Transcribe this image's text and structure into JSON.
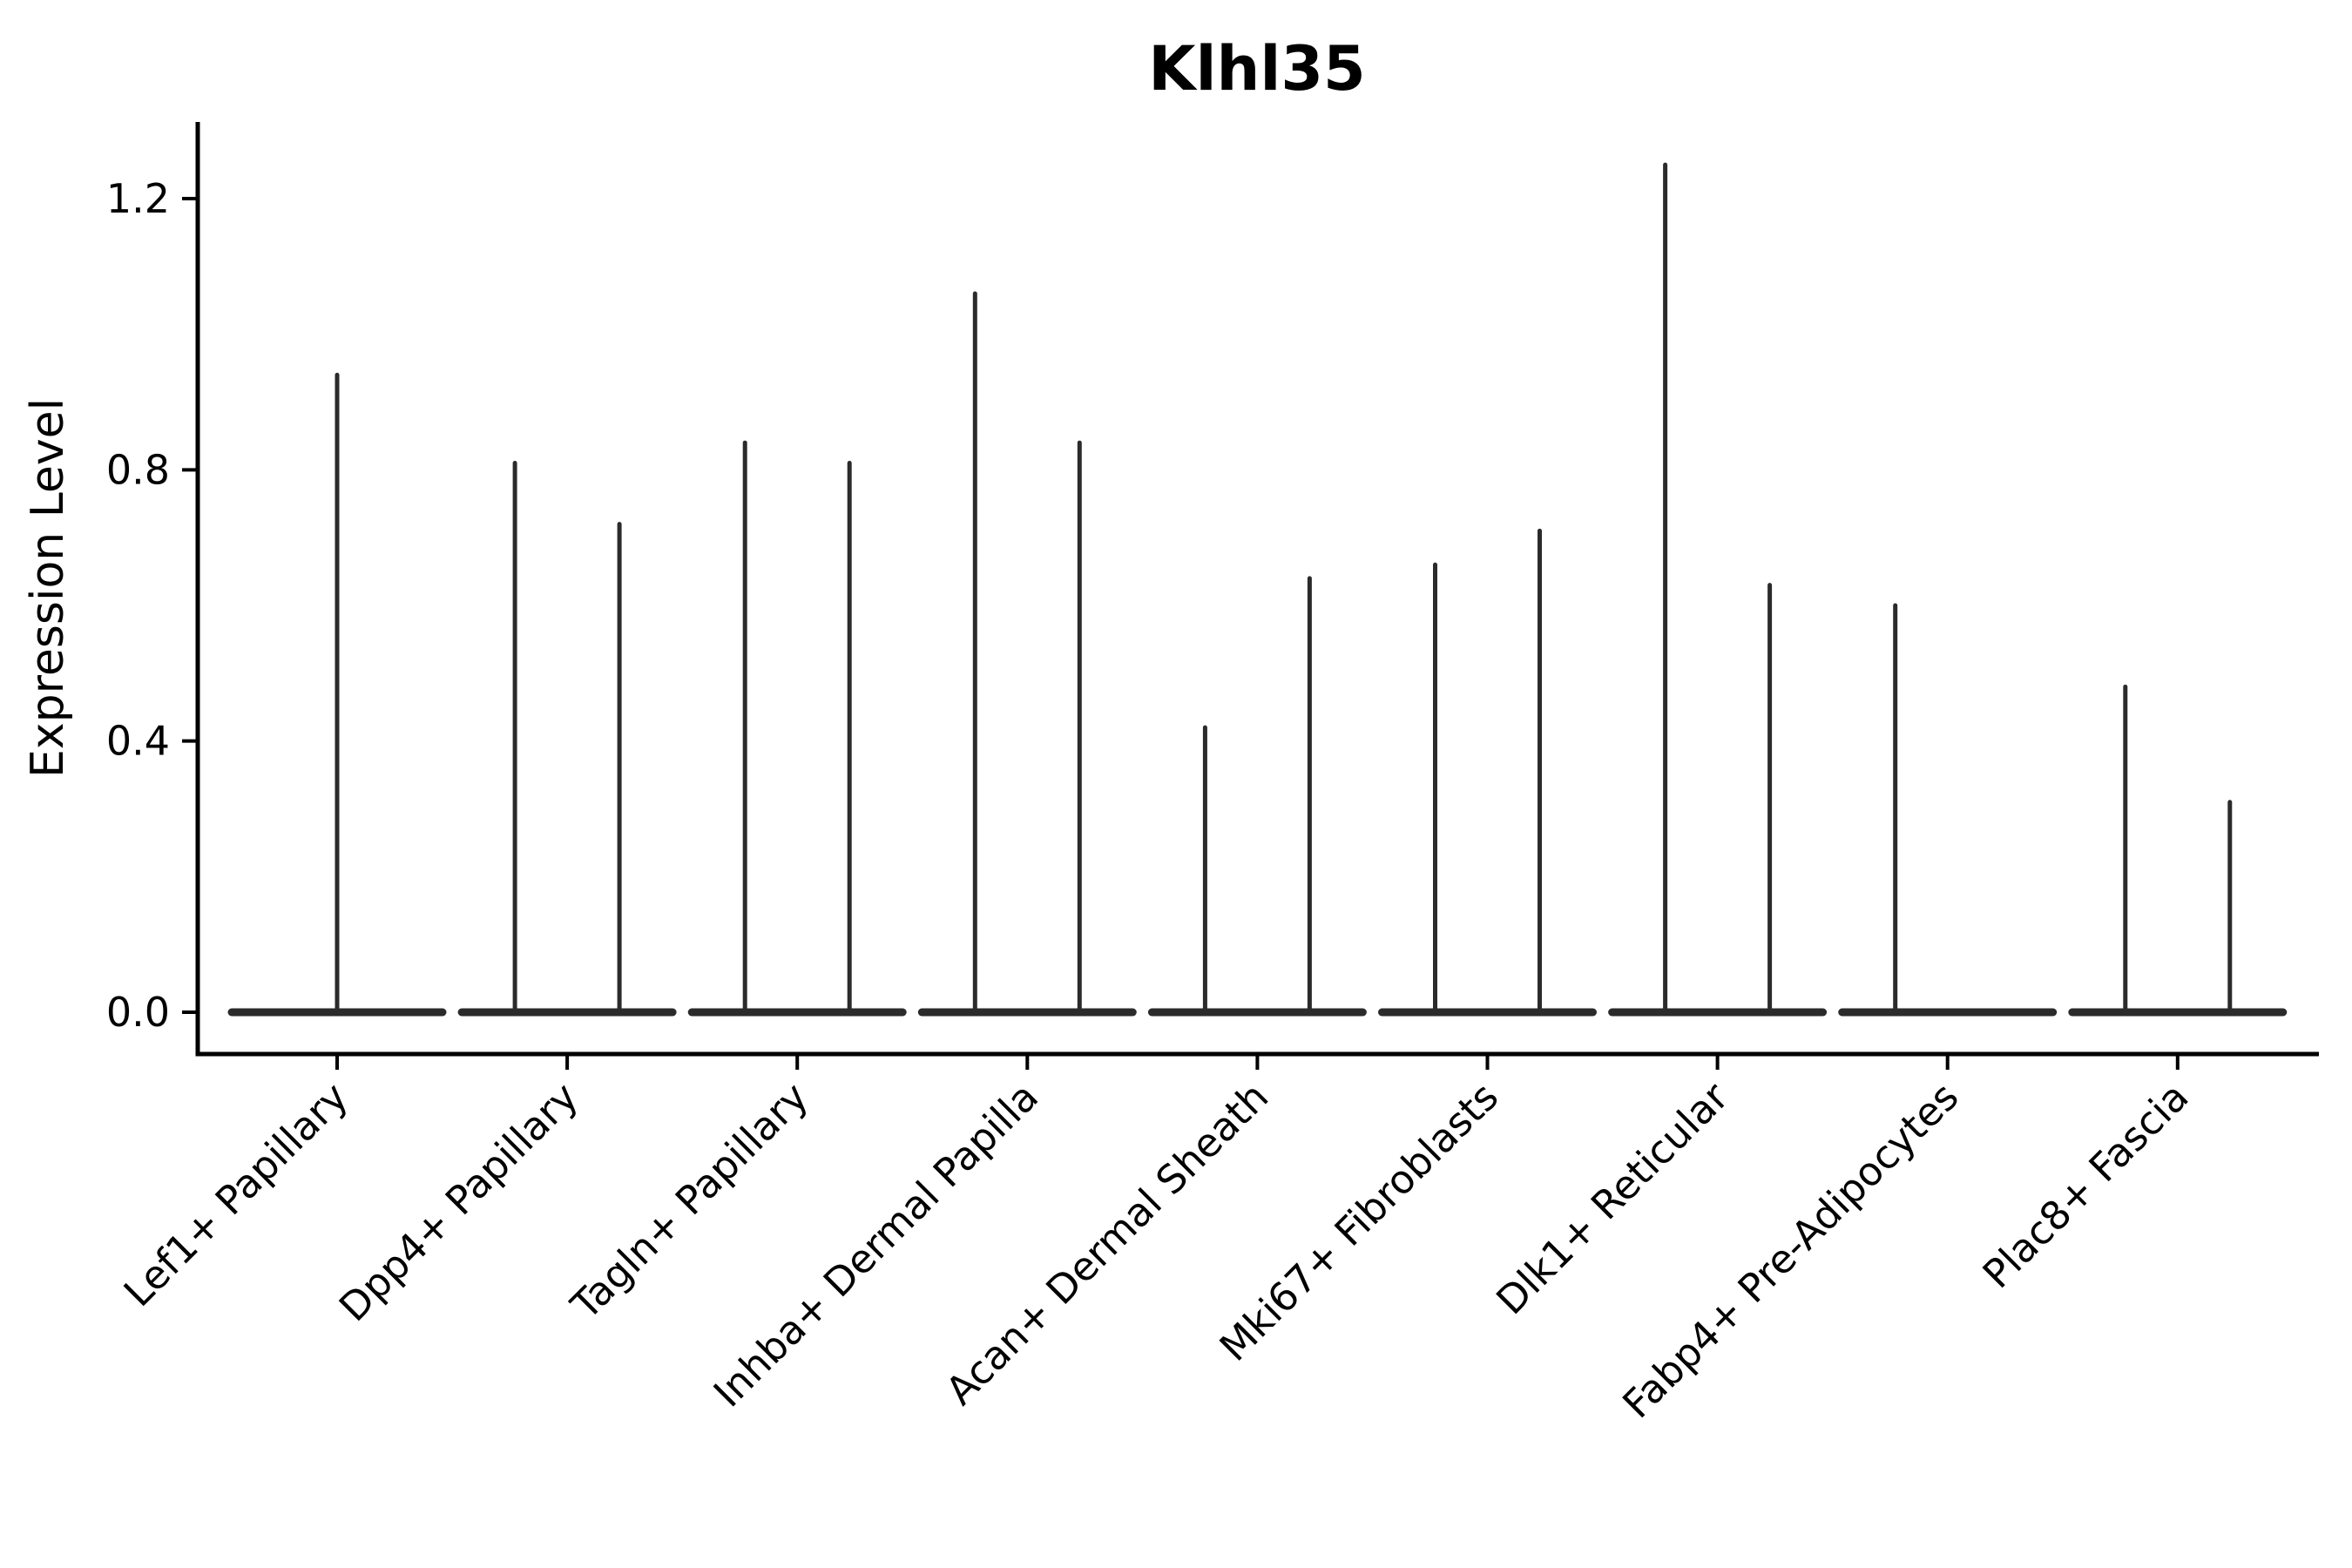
{
  "figure": {
    "background": "#ffffff",
    "ink_color": "#000000",
    "violin_color": "#2b2b2b"
  },
  "chart_data": {
    "type": "violin",
    "title": "Klhl35",
    "xlabel": "",
    "ylabel": "Expression Level",
    "ylim": [
      -0.06,
      1.31
    ],
    "grid": false,
    "legend": "none",
    "ytick_labels": [
      "0.0",
      "0.4",
      "0.8",
      "1.2"
    ],
    "yticks": [
      0.0,
      0.4,
      0.8,
      1.2
    ],
    "categories": [
      "Lef1+ Papillary",
      "Dpp4+ Papillary",
      "Tagln+ Papillary",
      "Inhba+ Dermal Papilla",
      "Acan+ Dermal Sheath",
      "Mki67+ Fibroblasts",
      "Dlk1+ Reticular",
      "Fabp4+ Pre-Adipocytes",
      "Plac8+ Fascia"
    ],
    "violins": [
      {
        "category": "Lef1+ Papillary",
        "baseline": 0,
        "spikes": [
          {
            "slot": "center",
            "max": 0.94
          }
        ]
      },
      {
        "category": "Dpp4+ Papillary",
        "baseline": 0,
        "spikes": [
          {
            "slot": "left",
            "max": 0.81
          },
          {
            "slot": "right",
            "max": 0.72
          }
        ]
      },
      {
        "category": "Tagln+ Papillary",
        "baseline": 0,
        "spikes": [
          {
            "slot": "left",
            "max": 0.84
          },
          {
            "slot": "right",
            "max": 0.81
          }
        ]
      },
      {
        "category": "Inhba+ Dermal Papilla",
        "baseline": 0,
        "spikes": [
          {
            "slot": "left",
            "max": 1.06
          },
          {
            "slot": "right",
            "max": 0.84
          }
        ]
      },
      {
        "category": "Acan+ Dermal Sheath",
        "baseline": 0,
        "spikes": [
          {
            "slot": "left",
            "max": 0.42
          },
          {
            "slot": "right",
            "max": 0.64
          }
        ]
      },
      {
        "category": "Mki67+ Fibroblasts",
        "baseline": 0,
        "spikes": [
          {
            "slot": "left",
            "max": 0.66
          },
          {
            "slot": "right",
            "max": 0.71
          }
        ]
      },
      {
        "category": "Dlk1+ Reticular",
        "baseline": 0,
        "spikes": [
          {
            "slot": "left",
            "max": 1.25
          },
          {
            "slot": "right",
            "max": 0.63
          }
        ]
      },
      {
        "category": "Fabp4+ Pre-Adipocytes",
        "baseline": 0,
        "spikes": [
          {
            "slot": "left",
            "max": 0.6
          }
        ]
      },
      {
        "category": "Plac8+ Fascia",
        "baseline": 0,
        "spikes": [
          {
            "slot": "left",
            "max": 0.48
          },
          {
            "slot": "right",
            "max": 0.31
          }
        ]
      }
    ]
  }
}
